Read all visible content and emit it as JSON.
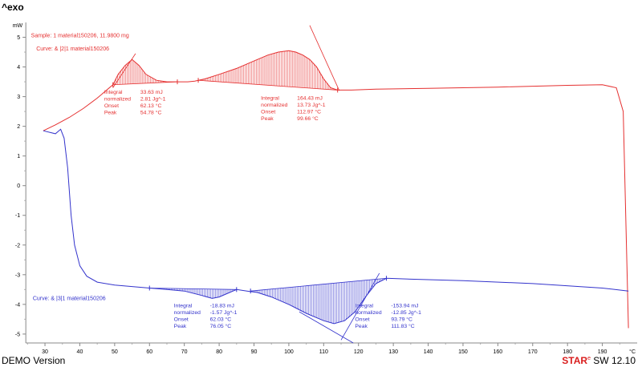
{
  "header": {
    "exo_label": "^exo"
  },
  "footer": {
    "demo": "DEMO Version",
    "brand_star": "STAR",
    "brand_mark": "e",
    "brand_version": " SW 12.10"
  },
  "chart_data": {
    "type": "line",
    "title": "",
    "xlabel": "°C",
    "ylabel": "mW",
    "xlim": [
      24,
      200
    ],
    "ylim": [
      -5.3,
      5.5
    ],
    "x_ticks": [
      30,
      40,
      50,
      60,
      70,
      80,
      90,
      100,
      110,
      120,
      130,
      140,
      150,
      160,
      170,
      180,
      190
    ],
    "y_ticks": [
      5,
      4,
      3,
      2,
      1,
      0,
      -1,
      -2,
      -3,
      -4,
      -5
    ],
    "grid": false,
    "sample_label": "Sample: 1    material150206, 11.9800 mg",
    "series": [
      {
        "name": "Curve: & |2|1    material150206",
        "color": "#e53030",
        "x": [
          29.5,
          33,
          37,
          41,
          45,
          49.5,
          51,
          53,
          55,
          57,
          59,
          62,
          65,
          68,
          71,
          73,
          76,
          80,
          85,
          90,
          94,
          97,
          100,
          102,
          104,
          106,
          108,
          110,
          112,
          114,
          118,
          125,
          140,
          160,
          180,
          190,
          194,
          196,
          197.5
        ],
        "y": [
          1.85,
          2.05,
          2.3,
          2.6,
          2.95,
          3.4,
          3.75,
          4.05,
          4.25,
          4.05,
          3.75,
          3.55,
          3.5,
          3.5,
          3.5,
          3.52,
          3.6,
          3.75,
          3.95,
          4.2,
          4.4,
          4.5,
          4.55,
          4.5,
          4.4,
          4.25,
          4.0,
          3.6,
          3.3,
          3.22,
          3.22,
          3.25,
          3.28,
          3.32,
          3.38,
          3.4,
          3.3,
          2.5,
          -4.8
        ]
      },
      {
        "name": "Curve: & |3|1    material150206",
        "color": "#3333cc",
        "x": [
          29.5,
          33,
          34.5,
          35.5,
          36.5,
          37.5,
          38.5,
          40,
          42,
          45,
          50,
          55,
          60,
          65,
          70,
          75,
          78,
          80,
          83,
          85,
          88,
          91,
          95,
          100,
          105,
          110,
          113,
          116,
          119,
          122,
          125,
          128,
          135,
          150,
          170,
          190,
          197.5
        ],
        "y": [
          1.85,
          1.75,
          1.9,
          1.6,
          0.6,
          -1.0,
          -2.0,
          -2.7,
          -3.05,
          -3.25,
          -3.35,
          -3.4,
          -3.45,
          -3.5,
          -3.55,
          -3.7,
          -3.8,
          -3.75,
          -3.6,
          -3.5,
          -3.55,
          -3.6,
          -3.75,
          -4.0,
          -4.3,
          -4.55,
          -4.65,
          -4.55,
          -4.25,
          -3.75,
          -3.3,
          -3.12,
          -3.15,
          -3.2,
          -3.3,
          -3.45,
          -3.55
        ]
      }
    ],
    "annotations": [
      {
        "color": "#e53030",
        "x": 47,
        "y": 3.1,
        "rows": [
          [
            "Integral",
            "33.63 mJ"
          ],
          [
            "  normalized",
            "2.81 Jg^-1"
          ],
          [
            "Onset",
            "62.13 °C"
          ],
          [
            "Peak",
            "54.78 °C"
          ]
        ]
      },
      {
        "color": "#e53030",
        "x": 92,
        "y": 2.9,
        "rows": [
          [
            "Integral",
            "164.43 mJ"
          ],
          [
            "  normalized",
            "13.73 Jg^-1"
          ],
          [
            "Onset",
            "112.97 °C"
          ],
          [
            "Peak",
            "99.66 °C"
          ]
        ]
      },
      {
        "color": "#3333cc",
        "x": 67,
        "y": -4.1,
        "rows": [
          [
            "Integral",
            "-18.83 mJ"
          ],
          [
            "  normalized",
            "-1.57 Jg^-1"
          ],
          [
            "Onset",
            "62.03 °C"
          ],
          [
            "Peak",
            "76.05 °C"
          ]
        ]
      },
      {
        "color": "#3333cc",
        "x": 119,
        "y": -4.1,
        "rows": [
          [
            "Integral",
            "-153.94 mJ"
          ],
          [
            "  normalized",
            "-12.85 Jg^-1"
          ],
          [
            "Onset",
            "93.79 °C"
          ],
          [
            "Peak",
            "111.83 °C"
          ]
        ]
      }
    ],
    "integration_regions": [
      {
        "color": "#e53030",
        "x0": 49.5,
        "x1": 68,
        "base0": 3.4,
        "base1": 3.5
      },
      {
        "color": "#e53030",
        "x0": 74,
        "x1": 114,
        "base0": 3.55,
        "base1": 3.22
      },
      {
        "color": "#3333cc",
        "x0": 60,
        "x1": 85,
        "base0": -3.45,
        "base1": -3.5
      },
      {
        "color": "#3333cc",
        "x0": 89,
        "x1": 128,
        "base0": -3.55,
        "base1": -3.12
      }
    ],
    "tangent_lines": [
      {
        "color": "#e53030",
        "x0": 49.5,
        "y0": 3.3,
        "x1": 56,
        "y1": 4.45
      },
      {
        "color": "#e53030",
        "x0": 106,
        "y0": 5.4,
        "x1": 114.5,
        "y1": 3.2
      },
      {
        "color": "#3333cc",
        "x0": 103,
        "y0": -4.25,
        "x1": 118.5,
        "y1": -5.3
      },
      {
        "color": "#3333cc",
        "x0": 115,
        "y0": -5.2,
        "x1": 126,
        "y1": -2.95
      }
    ]
  }
}
